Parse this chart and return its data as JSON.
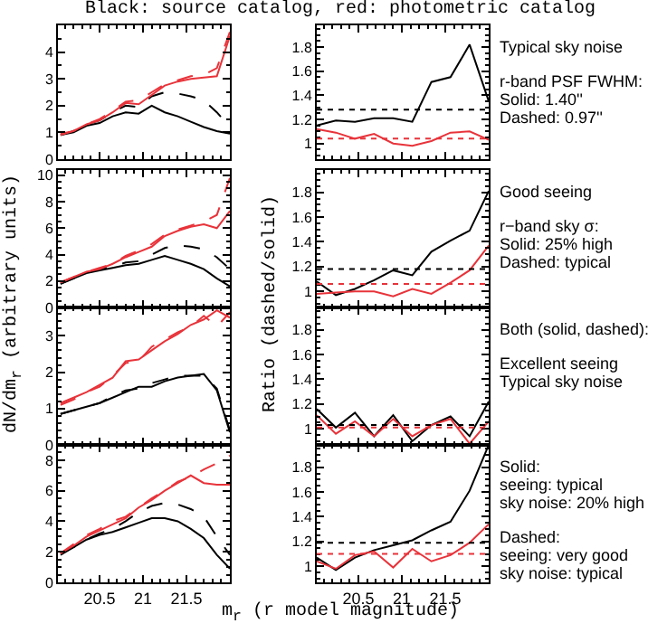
{
  "chart_data": [
    {
      "type": "line",
      "title": "Black: source catalog, red: photometric catalog",
      "x": [
        20.05,
        20.2,
        20.35,
        20.5,
        20.65,
        20.8,
        20.95,
        21.1,
        21.25,
        21.4,
        21.55,
        21.7,
        21.85,
        22.0
      ],
      "xlim": [
        20.02,
        22.0
      ],
      "xticks": [
        20.5,
        21,
        21.5
      ],
      "ylim": [
        0,
        5
      ],
      "yticks": [
        0,
        1,
        2,
        3,
        4
      ],
      "tick_labels": "y",
      "series": [
        {
          "color": "#000000",
          "line_style": "solid",
          "values": [
            0.9,
            1.0,
            1.25,
            1.35,
            1.6,
            1.75,
            1.7,
            2.0,
            1.75,
            1.6,
            1.4,
            1.2,
            1.05,
            0.95
          ]
        },
        {
          "color": "#000000",
          "line_style": "dashed",
          "values": [
            0.9,
            1.05,
            1.3,
            1.45,
            1.75,
            2.0,
            1.95,
            2.35,
            2.5,
            2.45,
            2.35,
            2.2,
            1.75,
            1.2
          ]
        },
        {
          "color": "#e8333a",
          "line_style": "solid",
          "values": [
            0.95,
            1.05,
            1.3,
            1.45,
            1.75,
            2.1,
            2.05,
            2.4,
            2.75,
            2.9,
            3.0,
            3.05,
            3.1,
            4.6
          ]
        },
        {
          "color": "#e8333a",
          "line_style": "dashed",
          "values": [
            0.9,
            1.05,
            1.3,
            1.5,
            1.8,
            2.15,
            2.2,
            2.5,
            2.8,
            2.95,
            3.1,
            3.15,
            3.4,
            4.75
          ]
        }
      ]
    },
    {
      "type": "line",
      "x": [
        20.02,
        20.24,
        20.46,
        20.68,
        20.9,
        21.12,
        21.34,
        21.56,
        21.78,
        22.0
      ],
      "xlim": [
        20.02,
        22.0
      ],
      "xticks": [
        20.5,
        21,
        21.5
      ],
      "ylim": [
        0.87,
        1.98
      ],
      "yticks": [
        1,
        1.2,
        1.4,
        1.6,
        1.8
      ],
      "tick_labels": "y",
      "annotations": [
        "Typical sky noise",
        "r-band PSF FWHM:\nSolid: 1.40''\nDashed: 0.97''"
      ],
      "ref_lines": [
        {
          "axis": "y",
          "value": 1.28,
          "color": "#000000",
          "line_style": "dotted"
        },
        {
          "axis": "y",
          "value": 1.04,
          "color": "#e8333a",
          "line_style": "dotted"
        }
      ],
      "series": [
        {
          "color": "#000000",
          "line_style": "solid",
          "values": [
            1.15,
            1.19,
            1.18,
            1.21,
            1.21,
            1.18,
            1.51,
            1.55,
            1.82,
            1.35
          ]
        },
        {
          "color": "#e8333a",
          "line_style": "solid",
          "values": [
            1.12,
            1.09,
            1.04,
            1.08,
            1.0,
            0.98,
            1.02,
            1.09,
            1.1,
            1.03
          ]
        }
      ]
    },
    {
      "type": "line",
      "ylabel": "dN/dm$_{r}$ (arbitrary units)",
      "x": [
        20.05,
        20.2,
        20.35,
        20.5,
        20.65,
        20.8,
        20.95,
        21.1,
        21.25,
        21.4,
        21.55,
        21.7,
        21.85,
        22.0
      ],
      "xlim": [
        20.02,
        22.0
      ],
      "xticks": [
        20.5,
        21,
        21.5
      ],
      "ylim": [
        0,
        10.4
      ],
      "yticks": [
        0,
        2,
        4,
        6,
        8,
        10
      ],
      "tick_labels": "y",
      "series": [
        {
          "color": "#000000",
          "line_style": "solid",
          "values": [
            1.8,
            2.2,
            2.6,
            2.8,
            3.0,
            3.2,
            3.3,
            3.6,
            3.9,
            3.6,
            3.3,
            2.9,
            2.2,
            1.6
          ]
        },
        {
          "color": "#000000",
          "line_style": "dashed",
          "values": [
            1.8,
            2.2,
            2.6,
            2.9,
            3.1,
            3.4,
            3.5,
            4.0,
            4.5,
            4.7,
            4.6,
            4.4,
            3.8,
            2.9
          ]
        },
        {
          "color": "#e8333a",
          "line_style": "solid",
          "values": [
            1.9,
            2.3,
            2.7,
            2.9,
            3.3,
            3.8,
            4.2,
            4.6,
            5.4,
            5.8,
            6.1,
            6.3,
            6.0,
            7.3
          ]
        },
        {
          "color": "#e8333a",
          "line_style": "dashed",
          "values": [
            1.9,
            2.3,
            2.7,
            3.0,
            3.3,
            3.9,
            4.3,
            4.8,
            5.5,
            5.9,
            6.2,
            6.5,
            7.0,
            9.8
          ]
        }
      ]
    },
    {
      "type": "line",
      "ylabel": "Ratio (dashed/solid)",
      "x": [
        20.02,
        20.24,
        20.46,
        20.68,
        20.9,
        21.12,
        21.34,
        21.56,
        21.78,
        22.0
      ],
      "xlim": [
        20.02,
        22.0
      ],
      "xticks": [
        20.5,
        21,
        21.5
      ],
      "ylim": [
        0.87,
        1.98
      ],
      "yticks": [
        1,
        1.2,
        1.4,
        1.6,
        1.8
      ],
      "tick_labels": "y",
      "annotations": [
        "Good seeing",
        "r−band sky σ:\nSolid: 25% high\nDashed: typical"
      ],
      "ref_lines": [
        {
          "axis": "y",
          "value": 1.18,
          "color": "#000000",
          "line_style": "dotted"
        },
        {
          "axis": "y",
          "value": 1.06,
          "color": "#e8333a",
          "line_style": "dotted"
        }
      ],
      "series": [
        {
          "color": "#000000",
          "line_style": "solid",
          "values": [
            1.08,
            0.97,
            1.02,
            1.09,
            1.17,
            1.13,
            1.32,
            1.41,
            1.49,
            1.81
          ]
        },
        {
          "color": "#e8333a",
          "line_style": "solid",
          "values": [
            0.98,
            0.99,
            1.0,
            1.0,
            0.96,
            1.02,
            0.98,
            1.07,
            1.17,
            1.37
          ]
        }
      ]
    },
    {
      "type": "line",
      "x": [
        20.05,
        20.2,
        20.35,
        20.5,
        20.65,
        20.8,
        20.95,
        21.1,
        21.25,
        21.4,
        21.55,
        21.7,
        21.85,
        22.0
      ],
      "xlim": [
        20.02,
        22.0
      ],
      "xticks": [
        20.5,
        21,
        21.5
      ],
      "ylim": [
        0,
        3.78
      ],
      "yticks": [
        0,
        1,
        2,
        3
      ],
      "tick_labels": "y",
      "series": [
        {
          "color": "#000000",
          "line_style": "solid",
          "values": [
            0.85,
            0.95,
            1.05,
            1.15,
            1.3,
            1.45,
            1.6,
            1.6,
            1.75,
            1.85,
            1.9,
            1.95,
            1.5,
            0.35
          ]
        },
        {
          "color": "#000000",
          "line_style": "dashed",
          "values": [
            0.85,
            0.95,
            1.05,
            1.15,
            1.35,
            1.5,
            1.55,
            1.7,
            1.8,
            1.9,
            1.9,
            1.9,
            1.55,
            0.4
          ]
        },
        {
          "color": "#e8333a",
          "line_style": "solid",
          "values": [
            1.15,
            1.3,
            1.45,
            1.65,
            1.85,
            2.3,
            2.35,
            2.6,
            2.85,
            3.05,
            3.3,
            3.45,
            3.7,
            3.5
          ]
        },
        {
          "color": "#e8333a",
          "line_style": "dashed",
          "values": [
            1.1,
            1.25,
            1.45,
            1.6,
            1.9,
            2.25,
            2.3,
            2.7,
            2.9,
            3.1,
            3.25,
            3.55,
            3.25,
            3.65
          ]
        }
      ]
    },
    {
      "type": "line",
      "x": [
        20.02,
        20.24,
        20.46,
        20.68,
        20.9,
        21.12,
        21.34,
        21.56,
        21.78,
        22.0
      ],
      "xlim": [
        20.02,
        22.0
      ],
      "xticks": [
        20.5,
        21,
        21.5
      ],
      "ylim": [
        0.87,
        1.98
      ],
      "yticks": [
        1,
        1.2,
        1.4,
        1.6,
        1.8
      ],
      "tick_labels": "y",
      "annotations": [
        "Both (solid, dashed):",
        "Excellent seeing\nTypical sky noise"
      ],
      "ref_lines": [
        {
          "axis": "y",
          "value": 1.03,
          "color": "#000000",
          "line_style": "dotted"
        },
        {
          "axis": "y",
          "value": 1.01,
          "color": "#e8333a",
          "line_style": "dotted"
        }
      ],
      "series": [
        {
          "color": "#000000",
          "line_style": "solid",
          "values": [
            1.16,
            1.01,
            1.13,
            0.94,
            1.11,
            0.9,
            1.03,
            1.1,
            0.94,
            1.22
          ]
        },
        {
          "color": "#e8333a",
          "line_style": "solid",
          "values": [
            1.11,
            0.96,
            1.06,
            0.94,
            1.08,
            0.94,
            1.03,
            1.08,
            0.88,
            1.06
          ]
        }
      ]
    },
    {
      "type": "line",
      "xlabel": "m$_{r}$ (r model magnitude)",
      "x": [
        20.05,
        20.2,
        20.35,
        20.5,
        20.65,
        20.8,
        20.95,
        21.1,
        21.25,
        21.4,
        21.55,
        21.7,
        21.85,
        22.0
      ],
      "xlim": [
        20.02,
        22.0
      ],
      "xticks": [
        20.5,
        21,
        21.5
      ],
      "ylim": [
        0,
        9
      ],
      "yticks": [
        0,
        2,
        4,
        6,
        8
      ],
      "series": [
        {
          "color": "#000000",
          "line_style": "solid",
          "values": [
            1.8,
            2.3,
            2.8,
            3.1,
            3.3,
            3.6,
            3.9,
            4.2,
            4.2,
            4.0,
            3.5,
            2.9,
            1.8,
            0.9
          ]
        },
        {
          "color": "#000000",
          "line_style": "dashed",
          "values": [
            1.9,
            2.3,
            2.8,
            3.2,
            3.5,
            4.0,
            4.6,
            5.0,
            5.2,
            5.1,
            4.8,
            4.3,
            3.0,
            1.8
          ]
        },
        {
          "color": "#e8333a",
          "line_style": "solid",
          "values": [
            1.9,
            2.4,
            3.0,
            3.4,
            3.8,
            4.2,
            4.9,
            5.4,
            6.0,
            6.5,
            7.0,
            6.5,
            6.4,
            6.4
          ]
        },
        {
          "color": "#e8333a",
          "line_style": "dashed",
          "values": [
            1.9,
            2.5,
            3.1,
            3.5,
            4.0,
            4.3,
            4.9,
            5.5,
            6.0,
            6.6,
            6.9,
            7.4,
            7.8,
            8.3
          ]
        }
      ]
    },
    {
      "type": "line",
      "x": [
        20.02,
        20.24,
        20.46,
        20.68,
        20.9,
        21.12,
        21.34,
        21.56,
        21.78,
        22.0
      ],
      "xlim": [
        20.02,
        22.0
      ],
      "xticks": [
        20.5,
        21,
        21.5
      ],
      "ylim": [
        0.87,
        1.98
      ],
      "yticks": [
        1,
        1.2,
        1.4,
        1.6,
        1.8
      ],
      "annotations": [
        "Solid:\nseeing: typical\nsky noise: 20% high",
        "Dashed:\nseeing: very good\nsky noise: typical"
      ],
      "ref_lines": [
        {
          "axis": "y",
          "value": 1.19,
          "color": "#000000",
          "line_style": "dotted"
        },
        {
          "axis": "y",
          "value": 1.1,
          "color": "#e8333a",
          "line_style": "dotted"
        }
      ],
      "series": [
        {
          "color": "#000000",
          "line_style": "solid",
          "values": [
            1.07,
            0.97,
            1.07,
            1.13,
            1.17,
            1.21,
            1.29,
            1.36,
            1.61,
            1.98
          ]
        },
        {
          "color": "#e8333a",
          "line_style": "solid",
          "values": [
            1.04,
            0.98,
            1.09,
            1.12,
            0.99,
            1.14,
            1.04,
            1.09,
            1.19,
            1.34
          ]
        }
      ]
    }
  ]
}
